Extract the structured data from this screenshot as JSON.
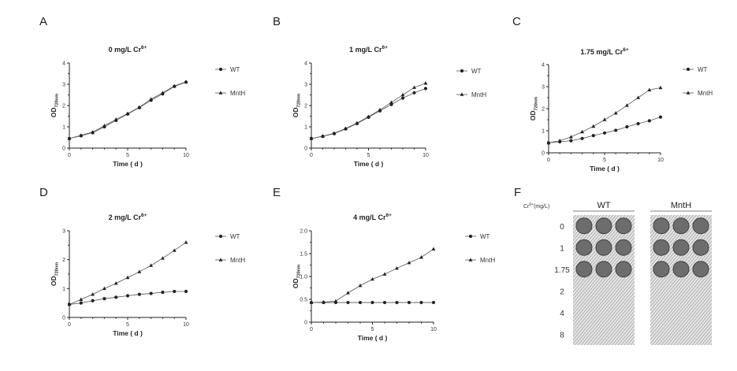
{
  "chart_data": [
    {
      "panel": "A",
      "type": "line",
      "title": "0 mg/L Cr",
      "title_sup": "6+",
      "xlabel": "Time ( d )",
      "ylabel": "OD",
      "ylabel_sub": "720nm",
      "xlim": [
        0,
        10
      ],
      "ylim": [
        0,
        4
      ],
      "xticks": [
        0,
        5,
        10
      ],
      "yticks": [
        0,
        1,
        2,
        3,
        4
      ],
      "x": [
        0,
        1,
        2,
        3,
        4,
        5,
        6,
        7,
        8,
        9,
        10
      ],
      "series": [
        {
          "name": "WT",
          "marker": "circle",
          "values": [
            0.45,
            0.58,
            0.72,
            1.0,
            1.3,
            1.6,
            1.9,
            2.25,
            2.55,
            2.9,
            3.1
          ]
        },
        {
          "name": "MntH",
          "marker": "triangle",
          "values": [
            0.45,
            0.6,
            0.75,
            1.05,
            1.35,
            1.62,
            1.92,
            2.3,
            2.6,
            2.92,
            3.12
          ]
        }
      ]
    },
    {
      "panel": "B",
      "type": "line",
      "title": "1 mg/L Cr",
      "title_sup": "6+",
      "xlabel": "Time ( d )",
      "ylabel": "OD",
      "ylabel_sub": "720nm",
      "xlim": [
        0,
        10
      ],
      "ylim": [
        0,
        4
      ],
      "xticks": [
        0,
        5,
        10
      ],
      "yticks": [
        0,
        1,
        2,
        3,
        4
      ],
      "x": [
        0,
        1,
        2,
        3,
        4,
        5,
        6,
        7,
        8,
        9,
        10
      ],
      "series": [
        {
          "name": "WT",
          "marker": "circle",
          "values": [
            0.45,
            0.55,
            0.68,
            0.9,
            1.15,
            1.45,
            1.75,
            2.05,
            2.35,
            2.6,
            2.8
          ]
        },
        {
          "name": "MntH",
          "marker": "triangle",
          "values": [
            0.45,
            0.56,
            0.7,
            0.92,
            1.18,
            1.48,
            1.8,
            2.15,
            2.5,
            2.85,
            3.05
          ]
        }
      ]
    },
    {
      "panel": "C",
      "type": "line",
      "title": "1.75 mg/L Cr",
      "title_sup": "6+",
      "xlabel": "Time ( d )",
      "ylabel": "OD",
      "ylabel_sub": "720nm",
      "xlim": [
        0,
        10
      ],
      "ylim": [
        0,
        4
      ],
      "xticks": [
        0,
        5,
        10
      ],
      "yticks": [
        0,
        1,
        2,
        3,
        4
      ],
      "x": [
        0,
        1,
        2,
        3,
        4,
        5,
        6,
        7,
        8,
        9,
        10
      ],
      "series": [
        {
          "name": "WT",
          "marker": "circle",
          "values": [
            0.45,
            0.5,
            0.55,
            0.65,
            0.78,
            0.9,
            1.02,
            1.18,
            1.32,
            1.45,
            1.62
          ]
        },
        {
          "name": "MntH",
          "marker": "triangle",
          "values": [
            0.45,
            0.55,
            0.72,
            0.95,
            1.2,
            1.5,
            1.8,
            2.15,
            2.5,
            2.85,
            2.95
          ]
        }
      ]
    },
    {
      "panel": "D",
      "type": "line",
      "title": "2 mg/L Cr",
      "title_sup": "6+",
      "xlabel": "Time ( d )",
      "ylabel": "OD",
      "ylabel_sub": "720nm",
      "xlim": [
        0,
        10
      ],
      "ylim": [
        0,
        3
      ],
      "xticks": [
        0,
        5,
        10
      ],
      "yticks": [
        0,
        1,
        2,
        3
      ],
      "x": [
        0,
        1,
        2,
        3,
        4,
        5,
        6,
        7,
        8,
        9,
        10
      ],
      "series": [
        {
          "name": "WT",
          "marker": "circle",
          "values": [
            0.45,
            0.5,
            0.58,
            0.65,
            0.7,
            0.75,
            0.8,
            0.83,
            0.87,
            0.9,
            0.9
          ]
        },
        {
          "name": "MntH",
          "marker": "triangle",
          "values": [
            0.45,
            0.62,
            0.8,
            1.0,
            1.18,
            1.38,
            1.58,
            1.8,
            2.05,
            2.32,
            2.6
          ]
        }
      ]
    },
    {
      "panel": "E",
      "type": "line",
      "title": "4 mg/L Cr",
      "title_sup": "6+",
      "xlabel": "Time ( d )",
      "ylabel": "OD",
      "ylabel_sub": "720nm",
      "xlim": [
        0,
        10
      ],
      "ylim": [
        0,
        2.0
      ],
      "xticks": [
        0,
        5,
        10
      ],
      "yticks": [
        "0",
        "0.5",
        "1.0",
        "1.5",
        "2.0"
      ],
      "x": [
        0,
        1,
        2,
        3,
        4,
        5,
        6,
        7,
        8,
        9,
        10
      ],
      "series": [
        {
          "name": "WT",
          "marker": "circle",
          "values": [
            0.43,
            0.43,
            0.43,
            0.43,
            0.43,
            0.43,
            0.43,
            0.43,
            0.43,
            0.43,
            0.43
          ]
        },
        {
          "name": "MntH",
          "marker": "triangle",
          "values": [
            0.43,
            0.44,
            0.46,
            0.64,
            0.8,
            0.94,
            1.05,
            1.18,
            1.3,
            1.42,
            1.6
          ]
        }
      ]
    }
  ],
  "panel_f": {
    "letter": "F",
    "row_header": "Cr",
    "row_header_sup": "6+",
    "row_header_unit": "(mg/L)",
    "columns": [
      "WT",
      "MntH"
    ],
    "rows": [
      "0",
      "1",
      "1.75",
      "2",
      "4",
      "8"
    ],
    "growth": {
      "WT": [
        3,
        3,
        3,
        0,
        0,
        0
      ],
      "MntH": [
        3,
        3,
        3,
        0,
        0,
        0
      ]
    }
  }
}
